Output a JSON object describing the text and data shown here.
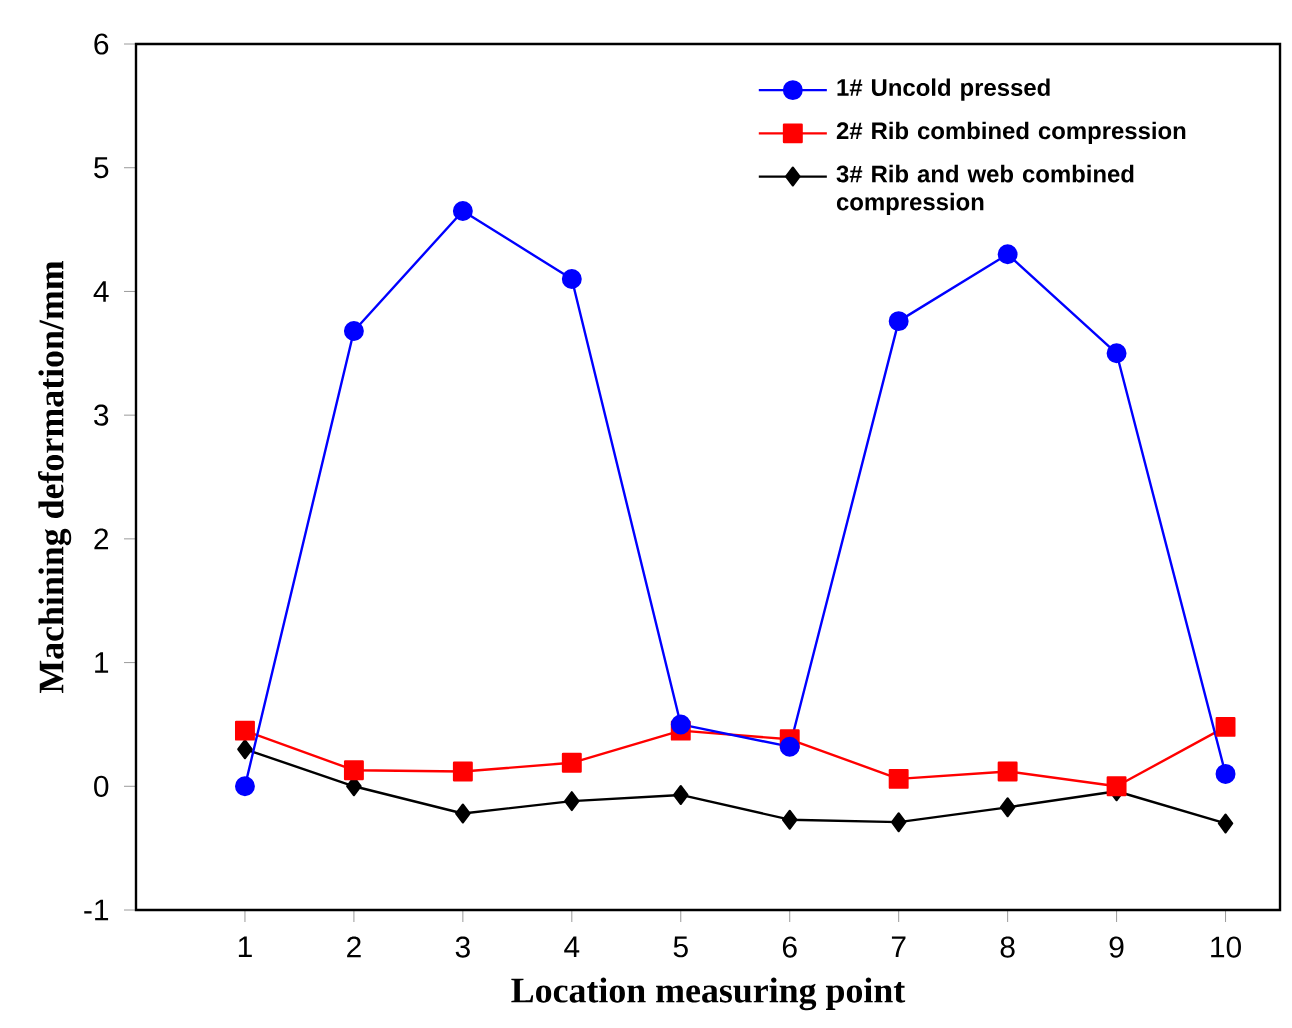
{
  "chart_data": {
    "type": "line",
    "xlabel": "Location measuring point",
    "ylabel": "Machining deformation/mm",
    "x": [
      1,
      2,
      3,
      4,
      5,
      6,
      7,
      8,
      9,
      10
    ],
    "series": [
      {
        "name": "1# Uncold pressed",
        "color": "#0000ff",
        "marker": "circle",
        "values": [
          0.0,
          3.68,
          4.65,
          4.1,
          0.5,
          0.32,
          3.76,
          4.3,
          3.5,
          0.1
        ]
      },
      {
        "name": "2# Rib combined compression",
        "color": "#ff0000",
        "marker": "square",
        "values": [
          0.45,
          0.13,
          0.12,
          0.19,
          0.45,
          0.38,
          0.06,
          0.12,
          0.0,
          0.48
        ]
      },
      {
        "name": "3# Rib and web combined compression",
        "color": "#000000",
        "marker": "diamond",
        "values": [
          0.3,
          0.0,
          -0.22,
          -0.12,
          -0.07,
          -0.27,
          -0.29,
          -0.17,
          -0.04,
          -0.3
        ]
      }
    ],
    "xlim": [
      0,
      10.5
    ],
    "xticks": [
      1,
      2,
      3,
      4,
      5,
      6,
      7,
      8,
      9,
      10
    ],
    "ylim": [
      -1,
      6
    ],
    "yticks": [
      -1,
      0,
      1,
      2,
      3,
      4,
      5,
      6
    ],
    "grid": false,
    "legend": "top right",
    "line_style": "solid"
  }
}
